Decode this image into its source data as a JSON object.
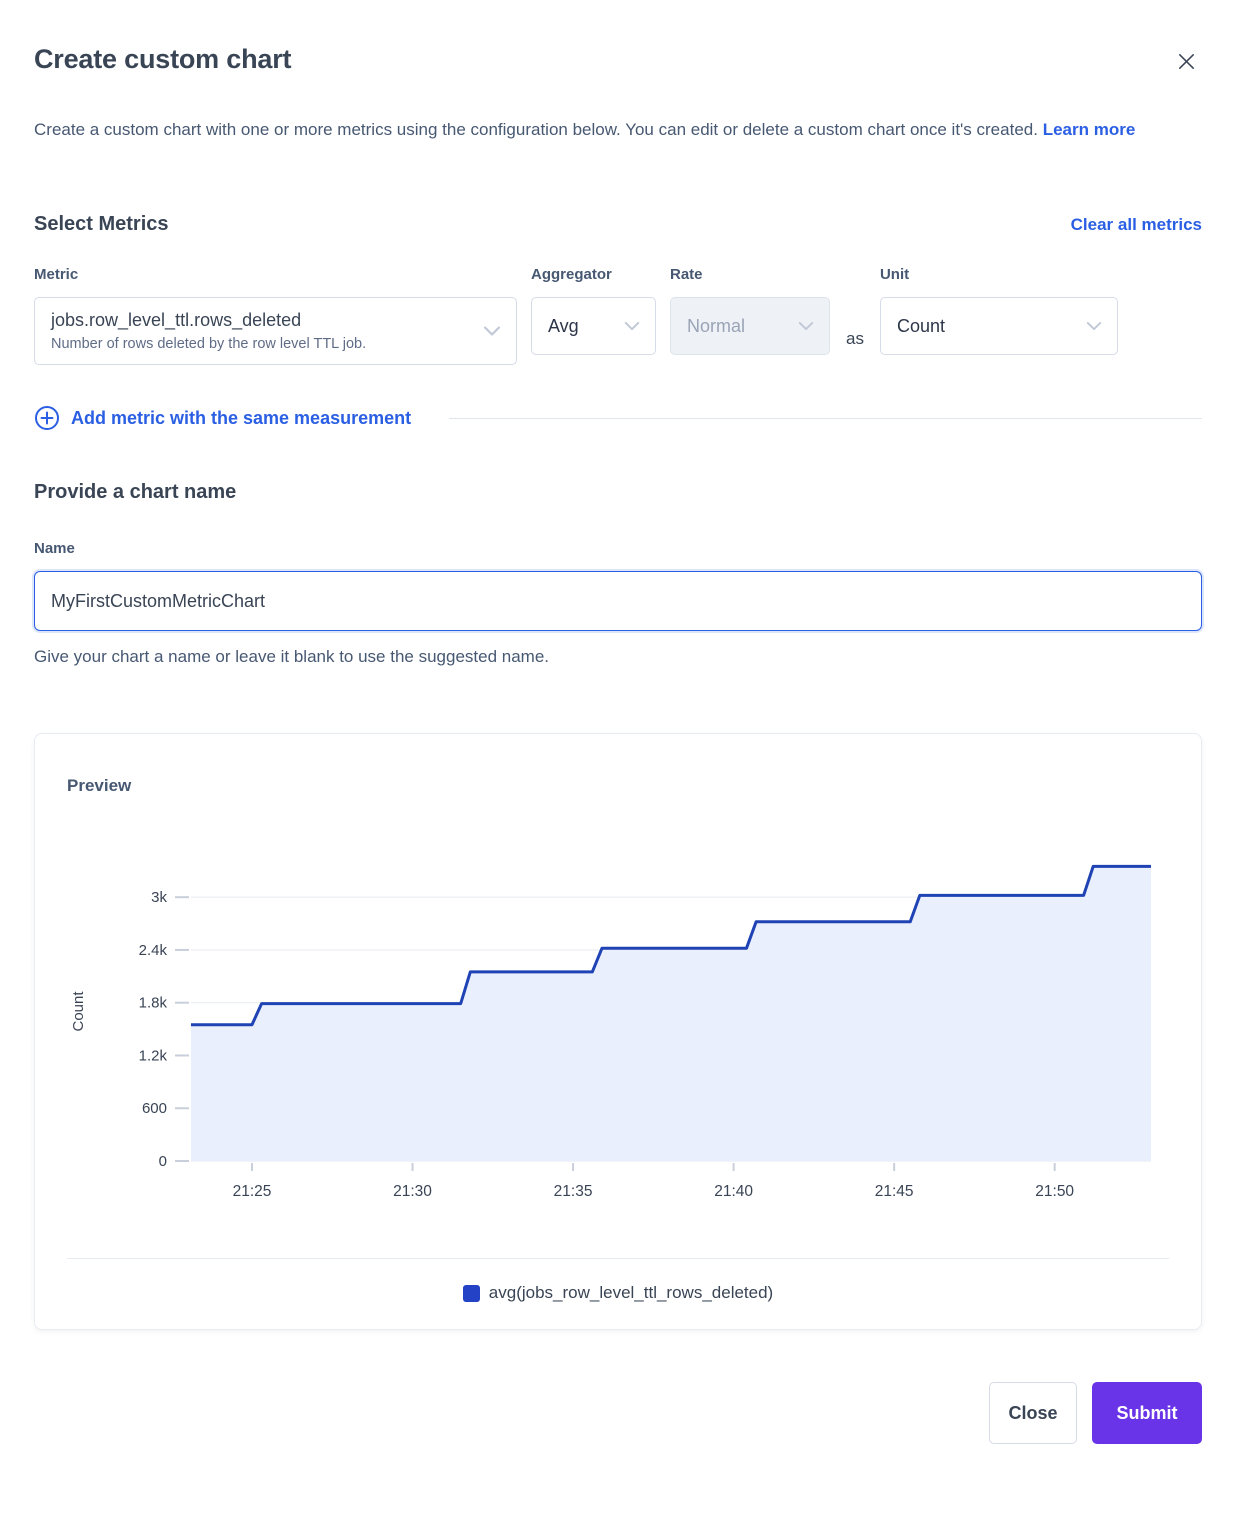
{
  "dialog": {
    "title": "Create custom chart"
  },
  "description": {
    "text": "Create a custom chart with one or more metrics using the configuration below. You can edit or delete a custom chart once it's created.",
    "link": "Learn more"
  },
  "metrics_section": {
    "heading": "Select Metrics",
    "clear_link": "Clear all metrics",
    "metric": {
      "label": "Metric",
      "value": "jobs.row_level_ttl.rows_deleted",
      "description": "Number of rows deleted by the row level TTL job."
    },
    "aggregator": {
      "label": "Aggregator",
      "value": "Avg"
    },
    "rate": {
      "label": "Rate",
      "value": "Normal",
      "disabled": true
    },
    "as_text": "as",
    "unit": {
      "label": "Unit",
      "value": "Count"
    },
    "add_metric_link": "Add metric with the same measurement"
  },
  "name_section": {
    "heading": "Provide a chart name",
    "label": "Name",
    "value": "MyFirstCustomMetricChart",
    "helper": "Give your chart a name or leave it blank to use the suggested name."
  },
  "preview": {
    "heading": "Preview",
    "legend_label": "avg(jobs_row_level_ttl_rows_deleted)"
  },
  "footer": {
    "close_label": "Close",
    "submit_label": "Submit"
  },
  "icons": {
    "close_icon": "✕",
    "chevron_down_icon": "⌄",
    "plus_circle_icon": "⊕",
    "legend_swatch": "■"
  },
  "colors": {
    "link_blue": "#2b5fe3",
    "line_blue": "#1f43b4",
    "area_fill_blue": "#e9effd",
    "legend_swatch_blue": "#2342c6",
    "submit_purple": "#6933e8",
    "heading_text": "#394455",
    "muted_text": "#5f6c87",
    "gridline": "#e6eaef"
  },
  "chart_data": {
    "type": "area",
    "subtype": "step-line",
    "title": "Preview",
    "xlabel": "",
    "ylabel": "Count",
    "x_unit": "minutes after 21:00",
    "x_range": [
      23.1,
      53.0
    ],
    "y_range": [
      0,
      3400
    ],
    "grid": true,
    "legend_position": "bottom",
    "x_ticks": [
      {
        "value": 25,
        "label": "21:25"
      },
      {
        "value": 30,
        "label": "21:30"
      },
      {
        "value": 35,
        "label": "21:35"
      },
      {
        "value": 40,
        "label": "21:40"
      },
      {
        "value": 45,
        "label": "21:45"
      },
      {
        "value": 50,
        "label": "21:50"
      }
    ],
    "y_ticks": [
      {
        "value": 0,
        "label": "0"
      },
      {
        "value": 600,
        "label": "600"
      },
      {
        "value": 1200,
        "label": "1.2k"
      },
      {
        "value": 1800,
        "label": "1.8k"
      },
      {
        "value": 2400,
        "label": "2.4k"
      },
      {
        "value": 3000,
        "label": "3k"
      }
    ],
    "series": [
      {
        "name": "avg(jobs_row_level_ttl_rows_deleted)",
        "line_color": "#1f43b4",
        "fill_color": "#e9effd",
        "swatch_color": "#2342c6",
        "points": [
          [
            23.1,
            1550
          ],
          [
            25.0,
            1550
          ],
          [
            25.3,
            1790
          ],
          [
            31.5,
            1790
          ],
          [
            31.8,
            2150
          ],
          [
            35.6,
            2150
          ],
          [
            35.9,
            2420
          ],
          [
            40.4,
            2420
          ],
          [
            40.7,
            2720
          ],
          [
            45.5,
            2720
          ],
          [
            45.8,
            3020
          ],
          [
            50.9,
            3020
          ],
          [
            51.2,
            3350
          ],
          [
            53.0,
            3350
          ]
        ]
      }
    ]
  }
}
